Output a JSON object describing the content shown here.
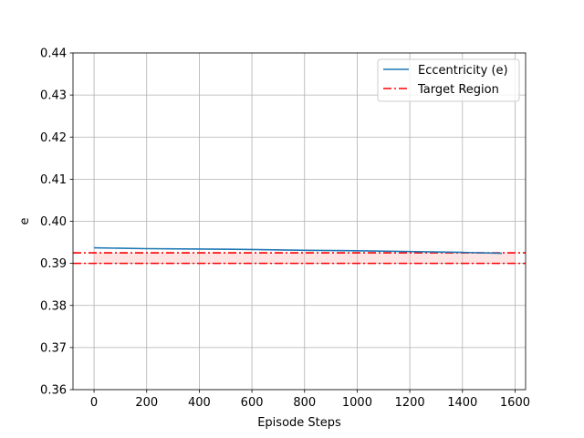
{
  "chart_data": {
    "type": "line",
    "xlabel": "Episode Steps",
    "ylabel": "e",
    "xlim": [
      -80,
      1640
    ],
    "ylim": [
      0.36,
      0.44
    ],
    "xticks": [
      0,
      200,
      400,
      600,
      800,
      1000,
      1200,
      1400,
      1600
    ],
    "xtick_labels": [
      "0",
      "200",
      "400",
      "600",
      "800",
      "1000",
      "1200",
      "1400",
      "1600"
    ],
    "yticks": [
      0.36,
      0.37,
      0.38,
      0.39,
      0.4,
      0.41,
      0.42,
      0.43,
      0.44
    ],
    "ytick_labels": [
      "0.36",
      "0.37",
      "0.38",
      "0.39",
      "0.40",
      "0.41",
      "0.42",
      "0.43",
      "0.44"
    ],
    "grid": true,
    "legend_position": "top-right",
    "series": [
      {
        "name": "Eccentricity (e)",
        "color": "#1f77b4",
        "style": "solid",
        "x": [
          0,
          200,
          400,
          600,
          800,
          1000,
          1200,
          1400,
          1550
        ],
        "y": [
          0.3937,
          0.3935,
          0.3934,
          0.3933,
          0.3931,
          0.393,
          0.3928,
          0.3926,
          0.3924
        ]
      }
    ],
    "target_region": {
      "name": "Target Region",
      "color": "#ff0000",
      "fill": "#ffb3b3",
      "style": "dashdot",
      "lower": 0.39,
      "upper": 0.3925,
      "x_range": [
        0,
        1600
      ]
    }
  }
}
